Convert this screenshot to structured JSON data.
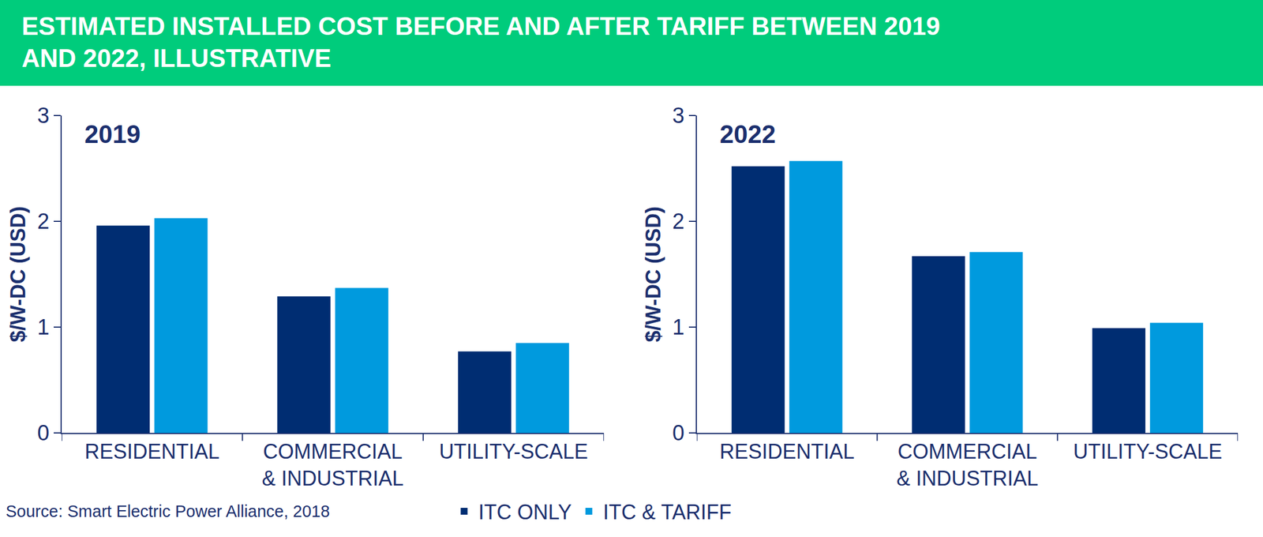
{
  "title": "ESTIMATED INSTALLED COST BEFORE AND AFTER TARIFF BETWEEN 2019 AND 2022, ILLUSTRATIVE",
  "source": "Source: Smart Electric Power Alliance, 2018",
  "chart_data": [
    {
      "type": "bar",
      "title": "2019",
      "categories": [
        "RESIDENTIAL",
        "COMMERCIAL & INDUSTRIAL",
        "UTILITY-SCALE"
      ],
      "y_label": "$/W-DC (USD)",
      "series": [
        {
          "name": "ITC ONLY",
          "color": "#002d72",
          "values": [
            1.96,
            1.29,
            0.77
          ]
        },
        {
          "name": "ITC & TARIFF",
          "color": "#009ade",
          "values": [
            2.03,
            1.37,
            0.85
          ]
        }
      ],
      "ylim": [
        0,
        3
      ],
      "yticks": [
        0,
        1,
        2,
        3
      ],
      "grid": false,
      "legend": "bottom"
    },
    {
      "type": "bar",
      "title": "2022",
      "categories": [
        "RESIDENTIAL",
        "COMMERCIAL & INDUSTRIAL",
        "UTILITY-SCALE"
      ],
      "y_label": "$/W-DC (USD)",
      "series": [
        {
          "name": "ITC ONLY",
          "color": "#002d72",
          "values": [
            2.52,
            1.67,
            0.99
          ]
        },
        {
          "name": "ITC & TARIFF",
          "color": "#009ade",
          "values": [
            2.57,
            1.71,
            1.04
          ]
        }
      ],
      "ylim": [
        0,
        3
      ],
      "yticks": [
        0,
        1,
        2,
        3
      ],
      "grid": false,
      "legend": "bottom"
    }
  ]
}
